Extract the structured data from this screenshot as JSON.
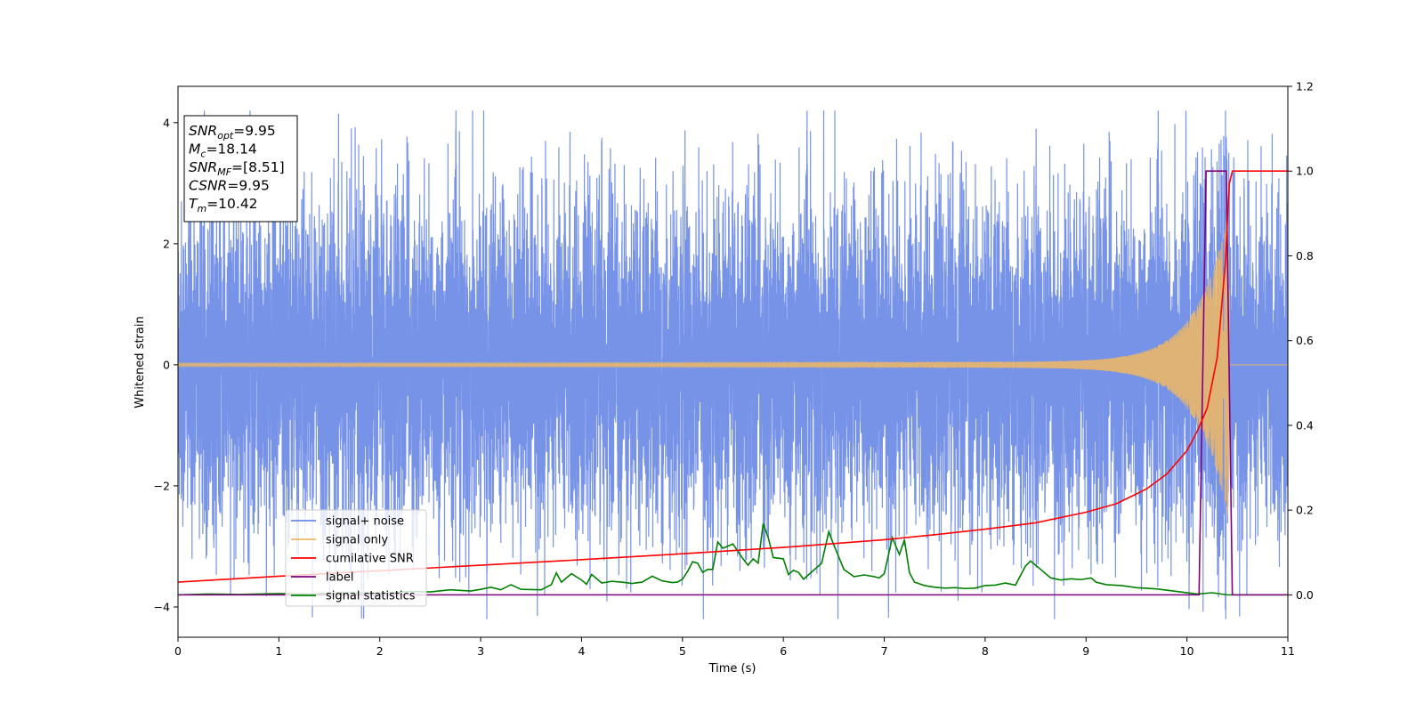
{
  "chart_data": {
    "type": "line",
    "xlabel": "Time (s)",
    "ylabel": "Whitened strain",
    "xlim": [
      0,
      11
    ],
    "ylim": [
      -4.5,
      4.6
    ],
    "y2lim": [
      -0.1,
      1.2
    ],
    "x_ticks": [
      0,
      1,
      2,
      3,
      4,
      5,
      6,
      7,
      8,
      9,
      10,
      11
    ],
    "y_ticks": [
      -4,
      -2,
      0,
      2,
      4
    ],
    "y2_ticks": [
      0.0,
      0.2,
      0.4,
      0.6,
      0.8,
      1.0,
      1.2
    ],
    "grid": false,
    "legend_placement": "lower-left",
    "info_box": {
      "lines": [
        {
          "symbol": "SNR",
          "sub": "opt",
          "value": "=9.95"
        },
        {
          "symbol": "M",
          "sub": "c",
          "value": "=18.14"
        },
        {
          "symbol": "SNR",
          "sub": "MF",
          "value": "=[8.51]"
        },
        {
          "symbol": "CSNR",
          "sub": "",
          "value": "=9.95"
        },
        {
          "symbol": "T",
          "sub": "m",
          "value": "=10.42"
        }
      ]
    },
    "series": [
      {
        "name": "signal+ noise",
        "color": "#6b8ae6",
        "axis": "left",
        "style": "noise",
        "noise_amplitude": 1.4,
        "spike_max": 4.2
      },
      {
        "name": "signal only",
        "color": "#f0b860",
        "axis": "left",
        "style": "chirp",
        "t_merge": 10.42,
        "amp_start": 0.03,
        "amp_peak": 2.5
      },
      {
        "name": "cumilative SNR",
        "color": "#ff0000",
        "axis": "right",
        "x": [
          0,
          1,
          2,
          3,
          4,
          5,
          6,
          7,
          7.5,
          8,
          8.5,
          9,
          9.3,
          9.6,
          9.8,
          10.0,
          10.1,
          10.2,
          10.3,
          10.38,
          10.42,
          10.45,
          11
        ],
        "values": [
          0.03,
          0.044,
          0.057,
          0.07,
          0.083,
          0.097,
          0.112,
          0.13,
          0.142,
          0.155,
          0.17,
          0.195,
          0.215,
          0.25,
          0.285,
          0.34,
          0.385,
          0.44,
          0.56,
          0.78,
          0.97,
          1.0,
          1.0
        ]
      },
      {
        "name": "label",
        "color": "#800080",
        "axis": "right",
        "x": [
          0,
          10.12,
          10.19,
          10.39,
          10.45,
          11
        ],
        "values": [
          0,
          0,
          1,
          1,
          0,
          0
        ]
      },
      {
        "name": "signal statistics",
        "color": "#008000",
        "axis": "right",
        "x": [
          0,
          0.3,
          0.6,
          1.0,
          1.3,
          1.6,
          2.0,
          2.3,
          2.5,
          2.7,
          2.9,
          3.0,
          3.1,
          3.2,
          3.3,
          3.4,
          3.6,
          3.7,
          3.75,
          3.8,
          3.9,
          4.0,
          4.05,
          4.1,
          4.2,
          4.3,
          4.4,
          4.5,
          4.6,
          4.7,
          4.8,
          4.9,
          4.95,
          5.0,
          5.05,
          5.1,
          5.15,
          5.2,
          5.25,
          5.3,
          5.35,
          5.4,
          5.5,
          5.6,
          5.65,
          5.7,
          5.75,
          5.8,
          5.85,
          5.9,
          6.0,
          6.05,
          6.1,
          6.15,
          6.2,
          6.3,
          6.38,
          6.45,
          6.5,
          6.55,
          6.6,
          6.7,
          6.8,
          6.9,
          6.95,
          7.0,
          7.08,
          7.15,
          7.2,
          7.25,
          7.3,
          7.4,
          7.5,
          7.6,
          7.7,
          7.8,
          7.9,
          8.0,
          8.1,
          8.2,
          8.3,
          8.4,
          8.45,
          8.55,
          8.65,
          8.75,
          8.85,
          8.95,
          9.05,
          9.1,
          9.2,
          9.35,
          9.5,
          9.7,
          9.9,
          10.1,
          10.25,
          10.4,
          10.6,
          11
        ],
        "values": [
          0.0,
          0.002,
          0.001,
          0.003,
          0.002,
          0.005,
          0.004,
          0.008,
          0.007,
          0.012,
          0.009,
          0.013,
          0.018,
          0.012,
          0.024,
          0.013,
          0.012,
          0.024,
          0.052,
          0.03,
          0.05,
          0.035,
          0.025,
          0.048,
          0.028,
          0.032,
          0.03,
          0.027,
          0.03,
          0.044,
          0.033,
          0.029,
          0.03,
          0.037,
          0.055,
          0.078,
          0.075,
          0.053,
          0.06,
          0.06,
          0.125,
          0.11,
          0.12,
          0.085,
          0.07,
          0.085,
          0.075,
          0.168,
          0.135,
          0.088,
          0.085,
          0.048,
          0.058,
          0.053,
          0.037,
          0.058,
          0.075,
          0.149,
          0.118,
          0.089,
          0.06,
          0.043,
          0.047,
          0.043,
          0.04,
          0.05,
          0.135,
          0.095,
          0.13,
          0.052,
          0.03,
          0.022,
          0.018,
          0.016,
          0.017,
          0.015,
          0.016,
          0.022,
          0.023,
          0.028,
          0.023,
          0.068,
          0.08,
          0.06,
          0.04,
          0.035,
          0.038,
          0.036,
          0.04,
          0.03,
          0.024,
          0.022,
          0.017,
          0.014,
          0.008,
          0.002,
          0.005,
          0.0,
          0.0,
          0.0
        ]
      }
    ]
  }
}
